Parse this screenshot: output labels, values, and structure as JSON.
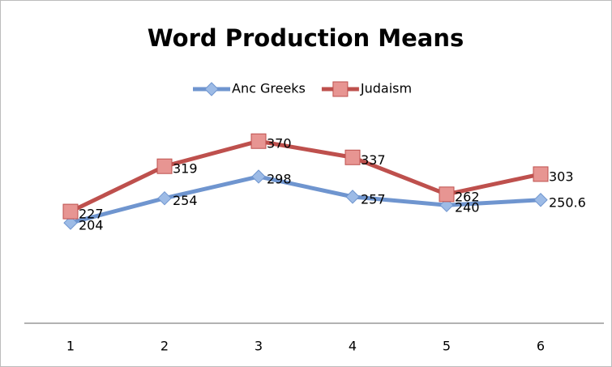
{
  "chart_data": {
    "type": "line",
    "title": "Word Production Means",
    "categories": [
      "1",
      "2",
      "3",
      "4",
      "5",
      "6"
    ],
    "series": [
      {
        "name": "Anc Greeks",
        "color": "#6f95cf",
        "values": [
          204,
          254,
          298,
          257,
          240,
          250.6
        ]
      },
      {
        "name": "Judaism",
        "color": "#be504d",
        "values": [
          227,
          319,
          370,
          337,
          262,
          303
        ]
      }
    ],
    "ylim": [
      0,
      400
    ],
    "legend": "top"
  }
}
